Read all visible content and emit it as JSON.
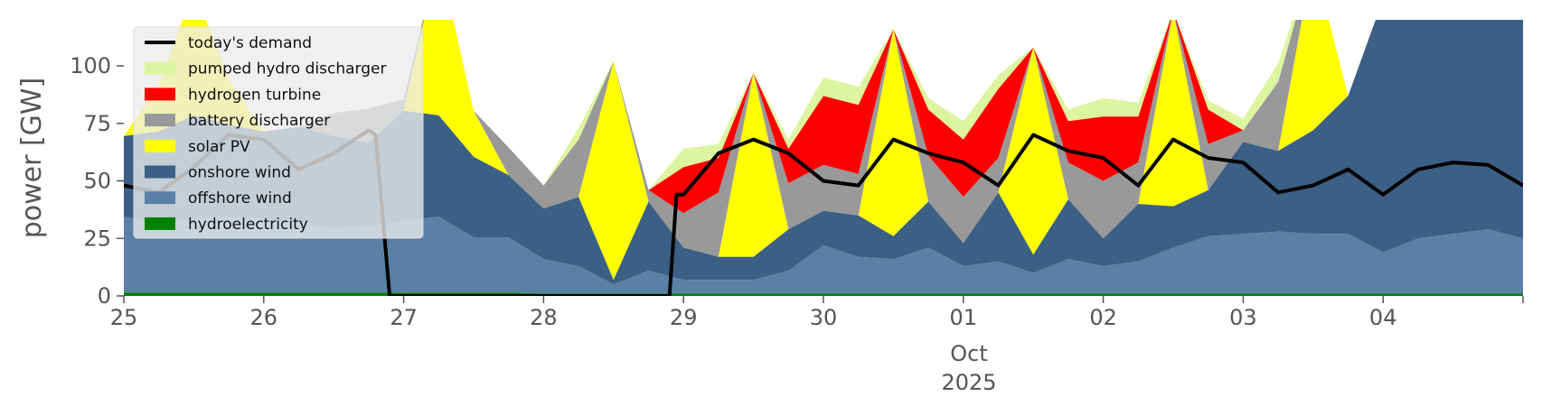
{
  "chart_data": {
    "type": "area",
    "title": "",
    "xlabel": "",
    "ylabel": "power [GW]",
    "ylim": [
      0,
      120
    ],
    "xlim": [
      0,
      10
    ],
    "y_ticks": [
      0,
      25,
      50,
      75,
      100
    ],
    "y_tick_labels": [
      "0",
      "25",
      "50",
      "75",
      "100"
    ],
    "x_ticks": [
      0,
      1,
      2,
      3,
      4,
      5,
      6,
      7,
      8,
      9
    ],
    "x_tick_labels": [
      "25",
      "26",
      "27",
      "28",
      "29",
      "30",
      "01",
      "02",
      "03",
      "04"
    ],
    "x_month_label": "Oct",
    "x_year_label": "2025",
    "grid": false,
    "legend_position": "upper-left",
    "x": [
      0,
      0.25,
      0.5,
      0.75,
      1,
      1.25,
      1.5,
      1.75,
      2,
      2.25,
      2.5,
      2.75,
      3,
      3.25,
      3.5,
      3.75,
      4,
      4.25,
      4.5,
      4.75,
      5,
      5.25,
      5.5,
      5.75,
      6,
      6.25,
      6.5,
      6.75,
      7,
      7.25,
      7.5,
      7.75,
      8,
      8.25,
      8.5,
      8.75,
      9,
      9.25,
      9.5,
      9.75,
      10
    ],
    "series": [
      {
        "name": "hydroelectricity",
        "color": "#008000",
        "values": [
          1.5,
          1.5,
          1.5,
          1.5,
          1.5,
          1.5,
          1.5,
          1.5,
          1.5,
          1.5,
          1.5,
          1.5,
          1,
          1,
          1,
          1,
          1,
          1,
          1,
          1,
          1,
          1,
          1,
          1,
          1,
          1,
          1,
          1,
          1,
          1,
          1,
          1,
          1,
          1,
          1,
          1,
          1,
          1,
          1,
          1,
          1
        ]
      },
      {
        "name": "offshore wind",
        "color": "#5b80a5",
        "values": [
          33,
          30,
          32,
          33,
          32,
          30,
          28,
          29,
          31,
          33,
          24,
          24,
          15,
          12,
          4,
          10,
          6,
          6,
          6,
          10,
          21,
          16,
          15,
          20,
          12,
          14,
          9,
          15,
          12,
          14,
          20,
          25,
          26,
          27,
          26,
          26,
          18,
          24,
          26,
          28,
          24
        ]
      },
      {
        "name": "onshore wind",
        "color": "#3b5f85",
        "values": [
          35,
          40,
          45,
          40,
          38,
          42,
          40,
          36,
          48,
          44,
          35,
          27,
          22,
          30,
          2,
          30,
          14,
          10,
          10,
          18,
          15,
          18,
          10,
          20,
          10,
          30,
          8,
          26,
          12,
          25,
          18,
          20,
          40,
          35,
          45,
          60,
          110,
          130,
          140,
          130,
          115
        ]
      },
      {
        "name": "solar PV",
        "color": "#ffff00",
        "values": [
          0,
          20,
          55,
          20,
          0,
          0,
          0,
          0,
          0,
          70,
          20,
          0,
          0,
          0,
          95,
          0,
          0,
          0,
          80,
          0,
          0,
          0,
          90,
          0,
          0,
          0,
          90,
          0,
          0,
          0,
          85,
          0,
          0,
          0,
          75,
          0,
          0,
          0,
          0,
          0,
          0
        ]
      },
      {
        "name": "battery discharger",
        "color": "#999999",
        "values": [
          0,
          0,
          0,
          0,
          0,
          0,
          10,
          15,
          5,
          0,
          0,
          12,
          10,
          25,
          0,
          5,
          15,
          28,
          0,
          20,
          20,
          18,
          0,
          20,
          20,
          15,
          0,
          16,
          25,
          18,
          0,
          20,
          5,
          30,
          0,
          0,
          0,
          0,
          0,
          0,
          0
        ]
      },
      {
        "name": "hydrogen turbine",
        "color": "#ff0000",
        "values": [
          0,
          0,
          0,
          0,
          0,
          0,
          0,
          0,
          0,
          0,
          0,
          0,
          0,
          0,
          0,
          0,
          20,
          15,
          0,
          15,
          30,
          30,
          0,
          20,
          25,
          30,
          0,
          18,
          28,
          20,
          0,
          15,
          0,
          0,
          0,
          0,
          0,
          0,
          0,
          0,
          0
        ]
      },
      {
        "name": "pumped hydro discharger",
        "color": "#ddf5a0",
        "values": [
          0,
          0,
          0,
          0,
          0,
          0,
          0,
          0,
          0,
          0,
          0,
          0,
          0,
          5,
          0,
          0,
          8,
          6,
          0,
          4,
          8,
          8,
          0,
          5,
          8,
          6,
          0,
          5,
          8,
          6,
          0,
          4,
          5,
          8,
          0,
          0,
          0,
          0,
          0,
          0,
          0
        ]
      }
    ],
    "demand": {
      "name": "today's demand",
      "color": "#000000",
      "x": [
        0,
        0.25,
        0.5,
        0.75,
        1,
        1.25,
        1.5,
        1.75,
        1.8,
        1.9,
        2,
        2.25,
        2.5,
        2.75,
        3,
        3.25,
        3.5,
        3.75,
        3.9,
        3.95,
        4,
        4.25,
        4.5,
        4.75,
        5,
        5.25,
        5.5,
        5.75,
        6,
        6.25,
        6.5,
        6.75,
        7,
        7.25,
        7.5,
        7.75,
        8,
        8.25,
        8.5,
        8.75,
        9,
        9.25,
        9.5,
        9.75,
        10
      ],
      "values": [
        48,
        45,
        56,
        70,
        68,
        55,
        62,
        72,
        70,
        0,
        0,
        0,
        0,
        0,
        0,
        0,
        0,
        0,
        0,
        44,
        44,
        62,
        68,
        62,
        50,
        48,
        68,
        62,
        58,
        48,
        70,
        63,
        60,
        48,
        68,
        60,
        58,
        45,
        48,
        55,
        44,
        55,
        58,
        57,
        48
      ]
    }
  }
}
